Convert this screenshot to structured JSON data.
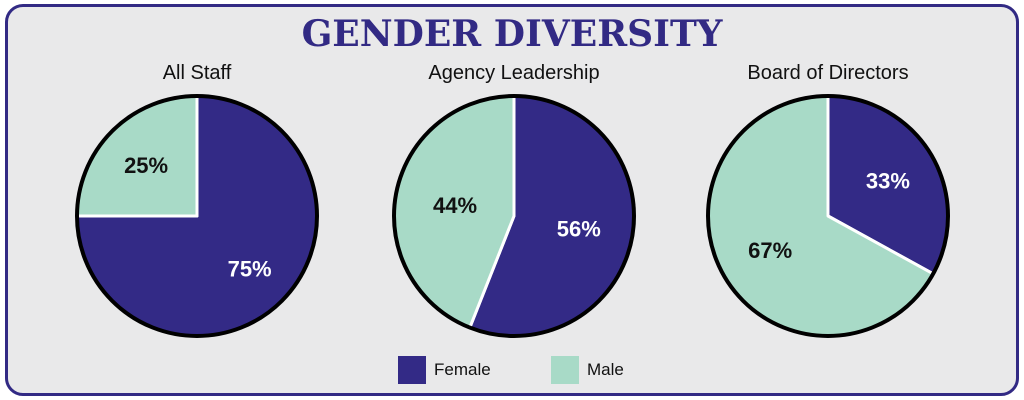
{
  "title": "GENDER DIVERSITY",
  "colors": {
    "female": "#332a86",
    "male": "#a8dac7",
    "title": "#322a84",
    "frame": "#322a84"
  },
  "legend": [
    {
      "name": "Female",
      "color": "#332a86"
    },
    {
      "name": "Male",
      "color": "#a8dac7"
    }
  ],
  "chart_data": [
    {
      "type": "pie",
      "title": "All Staff",
      "slices": [
        {
          "name": "Female",
          "value": 75,
          "label": "75%"
        },
        {
          "name": "Male",
          "value": 25,
          "label": "25%"
        }
      ]
    },
    {
      "type": "pie",
      "title": "Agency Leadership",
      "slices": [
        {
          "name": "Female",
          "value": 56,
          "label": "56%"
        },
        {
          "name": "Male",
          "value": 44,
          "label": "44%"
        }
      ]
    },
    {
      "type": "pie",
      "title": "Board of Directors",
      "slices": [
        {
          "name": "Female",
          "value": 33,
          "label": "33%"
        },
        {
          "name": "Male",
          "value": 67,
          "label": "67%"
        }
      ]
    }
  ]
}
